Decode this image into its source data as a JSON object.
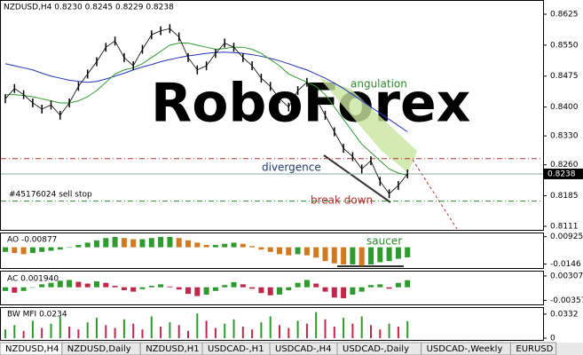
{
  "header": "NZDUSD,H4  0.8230 0.8245 0.8229 0.8238",
  "main": {
    "ylim": [
      0.8111,
      0.8625
    ],
    "yticks": [
      0.8625,
      {
        "value": 0.855,
        "label": "0.8550"
      },
      0.8475,
      {
        "value": 0.84,
        "label": "0.8400"
      },
      {
        "value": 0.833,
        "label": "0.8330"
      },
      {
        "value": 0.826,
        "label": "0.8260"
      },
      0.8185,
      0.8111
    ],
    "current_price": {
      "value": 0.8238,
      "label": "0.8238"
    },
    "close": [
      0.842,
      0.8445,
      0.843,
      0.841,
      0.8395,
      0.8405,
      0.838,
      0.841,
      0.845,
      0.848,
      0.851,
      0.8545,
      0.856,
      0.852,
      0.85,
      0.854,
      0.8575,
      0.8585,
      0.859,
      0.857,
      0.852,
      0.849,
      0.85,
      0.853,
      0.8555,
      0.8545,
      0.852,
      0.85,
      0.847,
      0.845,
      0.842,
      0.84,
      0.844,
      0.846,
      0.842,
      0.838,
      0.834,
      0.83,
      0.828,
      0.825,
      0.827,
      0.822,
      0.819,
      0.821,
      0.8238
    ],
    "ma_fast": [
      0.843,
      0.843,
      0.8428,
      0.8425,
      0.842,
      0.8415,
      0.841,
      0.841,
      0.8415,
      0.8425,
      0.844,
      0.846,
      0.848,
      0.849,
      0.8495,
      0.8505,
      0.852,
      0.8535,
      0.855,
      0.8555,
      0.8555,
      0.855,
      0.8545,
      0.854,
      0.8542,
      0.8545,
      0.8545,
      0.854,
      0.853,
      0.8515,
      0.85,
      0.848,
      0.847,
      0.846,
      0.845,
      0.843,
      0.84,
      0.837,
      0.834,
      0.831,
      0.829,
      0.827,
      0.825,
      0.824,
      0.8235
    ],
    "ma_slow": [
      0.8505,
      0.85,
      0.8495,
      0.849,
      0.8482,
      0.8475,
      0.847,
      0.8465,
      0.8462,
      0.846,
      0.8462,
      0.8468,
      0.8475,
      0.8482,
      0.849,
      0.8497,
      0.8503,
      0.851,
      0.8515,
      0.852,
      0.8524,
      0.8527,
      0.853,
      0.8532,
      0.8533,
      0.8532,
      0.853,
      0.8527,
      0.8523,
      0.8518,
      0.8512,
      0.8505,
      0.8497,
      0.849,
      0.848,
      0.847,
      0.8458,
      0.8445,
      0.843,
      0.8415,
      0.84,
      0.8385,
      0.837,
      0.8355,
      0.834
    ],
    "levels": [
      {
        "value": 0.8275,
        "color": "#b03030"
      },
      {
        "value": 0.8172,
        "color": "#2e8b2e"
      }
    ],
    "annotations": {
      "angulation": "angulation",
      "divergence": "divergence",
      "break_down": "break down",
      "order": "#45176024 sell stop"
    }
  },
  "ao": {
    "label": "AO -0.00877",
    "ylim": [
      -0.0165,
      0.0105
    ],
    "yticks": [
      0.00925,
      -0.0146
    ],
    "saucer": "saucer",
    "values": [
      -0.004,
      -0.005,
      -0.006,
      -0.005,
      -0.004,
      -0.003,
      -0.002,
      0.0,
      0.002,
      0.004,
      0.006,
      0.008,
      0.009,
      0.008,
      0.007,
      0.007,
      0.008,
      0.009,
      0.009,
      0.008,
      0.006,
      0.004,
      0.002,
      0.002,
      0.003,
      0.004,
      0.003,
      0.001,
      -0.002,
      -0.004,
      -0.006,
      -0.007,
      -0.006,
      -0.007,
      -0.009,
      -0.012,
      -0.014,
      -0.015,
      -0.015,
      -0.016,
      -0.015,
      -0.013,
      -0.012,
      -0.01,
      -0.00877
    ]
  },
  "ac": {
    "label": "AC 0.001940",
    "ylim": [
      -0.0042,
      0.0038
    ],
    "yticks": [
      0.003077,
      -0.00357
    ],
    "values": [
      -0.001,
      -0.0015,
      -0.001,
      0.0,
      0.0008,
      0.0012,
      0.0018,
      0.002,
      0.0015,
      0.001,
      0.0016,
      0.0012,
      0.0004,
      -0.0008,
      -0.0012,
      -0.0005,
      0.0004,
      0.0008,
      0.0002,
      -0.0006,
      -0.0018,
      -0.0024,
      -0.002,
      -0.001,
      0.0006,
      0.0014,
      0.0008,
      -0.0004,
      -0.0016,
      -0.0022,
      -0.002,
      -0.0008,
      0.0012,
      0.002,
      0.001,
      -0.0012,
      -0.0028,
      -0.003,
      -0.002,
      -0.0012,
      0.0006,
      0.0008,
      -0.0004,
      0.0012,
      0.00194
    ]
  },
  "bw": {
    "label": "BW MFI 0.0234",
    "ylim": [
      0,
      0.038
    ],
    "yticks": [
      0.0332,
      0
    ],
    "values": [
      0.012,
      0.018,
      0.01,
      0.024,
      0.014,
      0.02,
      0.03,
      0.016,
      0.012,
      0.022,
      0.028,
      0.018,
      0.014,
      0.026,
      0.02,
      0.012,
      0.03,
      0.016,
      0.022,
      0.018,
      0.01,
      0.034,
      0.024,
      0.014,
      0.02,
      0.026,
      0.016,
      0.012,
      0.022,
      0.03,
      0.018,
      0.014,
      0.024,
      0.02,
      0.036,
      0.026,
      0.016,
      0.028,
      0.02,
      0.03,
      0.018,
      0.012,
      0.02,
      0.016,
      0.0234
    ]
  },
  "tabs": [
    "NZDUSD,H4",
    "NZDUSD,Daily",
    "NZDUSD,H1",
    "USDCAD-,H1",
    "USDCAD-,H4",
    "USDCAD-,Daily",
    "USDCAD-,Weekly",
    "EURUSD"
  ]
}
